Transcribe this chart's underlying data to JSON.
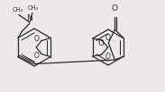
{
  "background": "#ede9e9",
  "line_color": "#2a2a2a",
  "line_width": 0.9,
  "figsize": [
    1.83,
    1.03
  ],
  "dpi": 100,
  "xlim": [
    0,
    183
  ],
  "ylim": [
    0,
    103
  ]
}
